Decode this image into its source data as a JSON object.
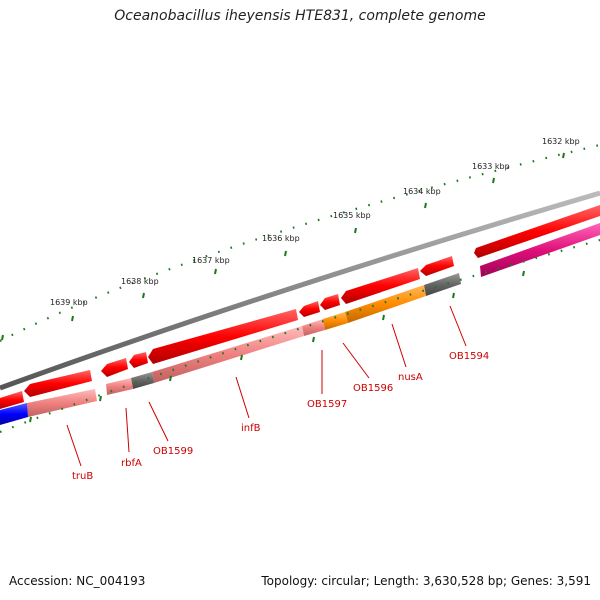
{
  "title": "Oceanobacillus iheyensis HTE831, complete genome",
  "footer": {
    "accession": "Accession: NC_004193",
    "topology": "Topology: circular; Length: 3,630,528 bp; Genes: 3,591"
  },
  "scale_labels": [
    "1632 kbp",
    "1633 kbp",
    "1634 kbp",
    "1635 kbp",
    "1636 kbp",
    "1637 kbp",
    "1638 kbp",
    "1639 kbp"
  ],
  "gene_labels": [
    "OB1594",
    "nusA",
    "OB1596",
    "OB1597",
    "infB",
    "OB1599",
    "rbfA",
    "truB"
  ],
  "colors": {
    "backbone": "#808080",
    "forward_gene": "#ff0000",
    "reverse_gene": "#f08080",
    "orange_gene": "#ff8c00",
    "gray_gene": "#666666",
    "pink_gene": "#ff1493",
    "blue_gene": "#0000ff",
    "tick": "#006400",
    "label": "#cc0000"
  }
}
